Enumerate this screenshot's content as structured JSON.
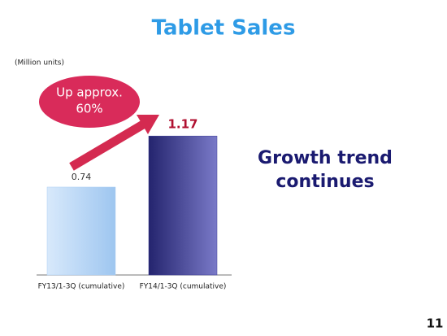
{
  "chart_data": {
    "type": "bar",
    "title": "Tablet Sales",
    "unit_label": "(Million units)",
    "categories": [
      "FY13/1-3Q (cumulative)",
      "FY14/1-3Q (cumulative)"
    ],
    "values": [
      0.74,
      1.17
    ],
    "colors": [
      "#a9cdf3",
      "#3b3b96"
    ],
    "annotation": [
      "Up approx.",
      "60%"
    ],
    "side_text": [
      "Growth trend",
      "continues"
    ],
    "page_number": "11"
  }
}
